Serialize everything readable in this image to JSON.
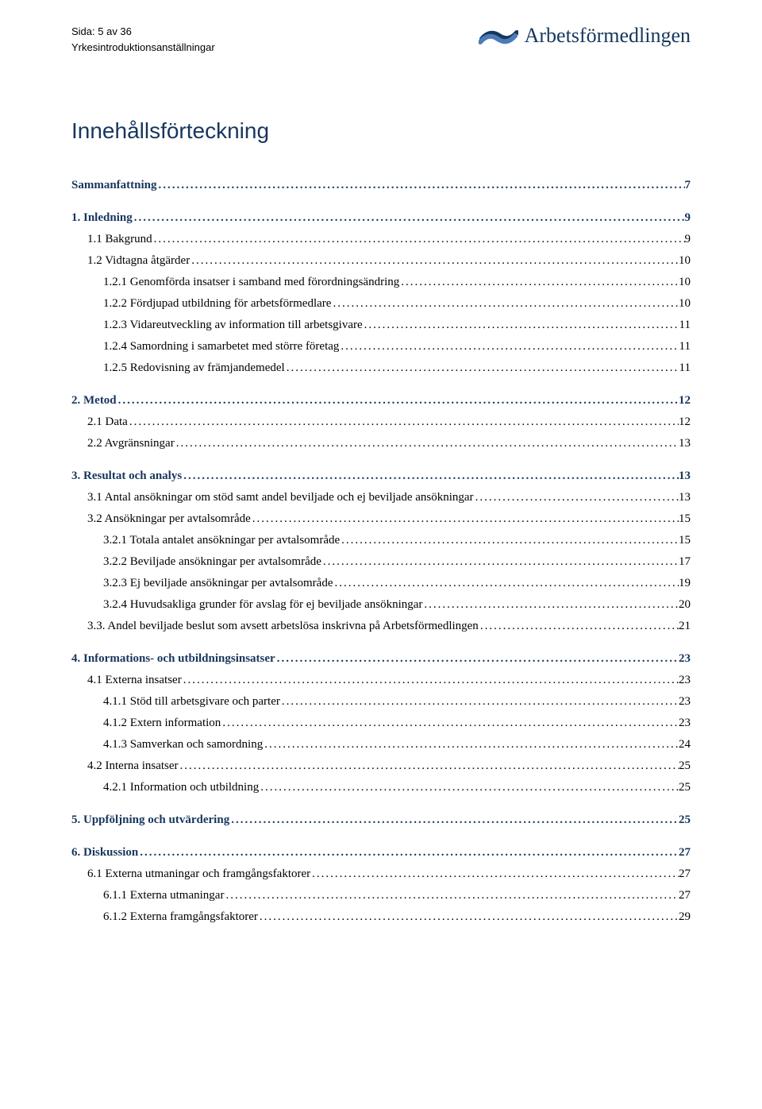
{
  "header": {
    "page_line": "Sida: 5 av 36",
    "subtitle": "Yrkesintroduktionsanställningar",
    "logo_text": "Arbetsförmedlingen"
  },
  "title": "Innehållsförteckning",
  "colors": {
    "heading_blue": "#17365d",
    "text": "#000000",
    "background": "#ffffff"
  },
  "toc": [
    {
      "level": 0,
      "bold": true,
      "blue": true,
      "label": "Sammanfattning",
      "page": "7"
    },
    {
      "sep": true
    },
    {
      "level": 0,
      "bold": true,
      "blue": true,
      "label": "1. Inledning",
      "page": "9"
    },
    {
      "level": 1,
      "label": "1.1 Bakgrund",
      "page": "9"
    },
    {
      "level": 1,
      "label": "1.2 Vidtagna åtgärder",
      "page": "10"
    },
    {
      "level": 2,
      "label": "1.2.1 Genomförda insatser i samband med förordningsändring",
      "page": "10"
    },
    {
      "level": 2,
      "label": "1.2.2 Fördjupad utbildning för arbetsförmedlare",
      "page": "10"
    },
    {
      "level": 2,
      "label": "1.2.3 Vidareutveckling av information till arbetsgivare",
      "page": "11"
    },
    {
      "level": 2,
      "label": "1.2.4 Samordning i samarbetet med större företag",
      "page": "11"
    },
    {
      "level": 2,
      "label": "1.2.5 Redovisning av främjandemedel",
      "page": "11"
    },
    {
      "sep": true
    },
    {
      "level": 0,
      "bold": true,
      "blue": true,
      "label": "2. Metod",
      "page": "12"
    },
    {
      "level": 1,
      "label": "2.1 Data",
      "page": "12"
    },
    {
      "level": 1,
      "label": "2.2 Avgränsningar",
      "page": "13"
    },
    {
      "sep": true
    },
    {
      "level": 0,
      "bold": true,
      "blue": true,
      "label": "3. Resultat och analys",
      "page": "13"
    },
    {
      "level": 1,
      "label": "3.1 Antal ansökningar om stöd samt andel beviljade och ej beviljade ansökningar",
      "page": "13"
    },
    {
      "level": 1,
      "label": "3.2 Ansökningar per avtalsområde",
      "page": "15"
    },
    {
      "level": 2,
      "label": "3.2.1 Totala antalet ansökningar per avtalsområde",
      "page": "15"
    },
    {
      "level": 2,
      "label": "3.2.2 Beviljade ansökningar per avtalsområde",
      "page": "17"
    },
    {
      "level": 2,
      "label": "3.2.3 Ej beviljade ansökningar per avtalsområde",
      "page": "19"
    },
    {
      "level": 2,
      "label": "3.2.4 Huvudsakliga grunder för avslag för ej beviljade ansökningar",
      "page": "20"
    },
    {
      "level": 1,
      "label": "3.3. Andel beviljade beslut som avsett arbetslösa inskrivna på Arbetsförmedlingen",
      "page": "21"
    },
    {
      "sep": true
    },
    {
      "level": 0,
      "bold": true,
      "blue": true,
      "label": "4. Informations- och utbildningsinsatser",
      "page": "23"
    },
    {
      "level": 1,
      "label": "4.1 Externa insatser",
      "page": "23"
    },
    {
      "level": 2,
      "label": "4.1.1 Stöd till arbetsgivare och parter",
      "page": "23"
    },
    {
      "level": 2,
      "label": "4.1.2 Extern information",
      "page": "23"
    },
    {
      "level": 2,
      "label": "4.1.3 Samverkan och samordning",
      "page": "24"
    },
    {
      "level": 1,
      "label": "4.2 Interna insatser",
      "page": "25"
    },
    {
      "level": 2,
      "label": "4.2.1 Information och utbildning",
      "page": "25"
    },
    {
      "sep": true
    },
    {
      "level": 0,
      "bold": true,
      "blue": true,
      "label": "5. Uppföljning och utvärdering",
      "page": "25"
    },
    {
      "sep": true
    },
    {
      "level": 0,
      "bold": true,
      "blue": true,
      "label": "6. Diskussion",
      "page": "27"
    },
    {
      "level": 1,
      "label": "6.1 Externa utmaningar och framgångsfaktorer",
      "page": "27"
    },
    {
      "level": 2,
      "label": "6.1.1 Externa utmaningar",
      "page": "27"
    },
    {
      "level": 2,
      "label": "6.1.2 Externa framgångsfaktorer",
      "page": "29"
    }
  ]
}
